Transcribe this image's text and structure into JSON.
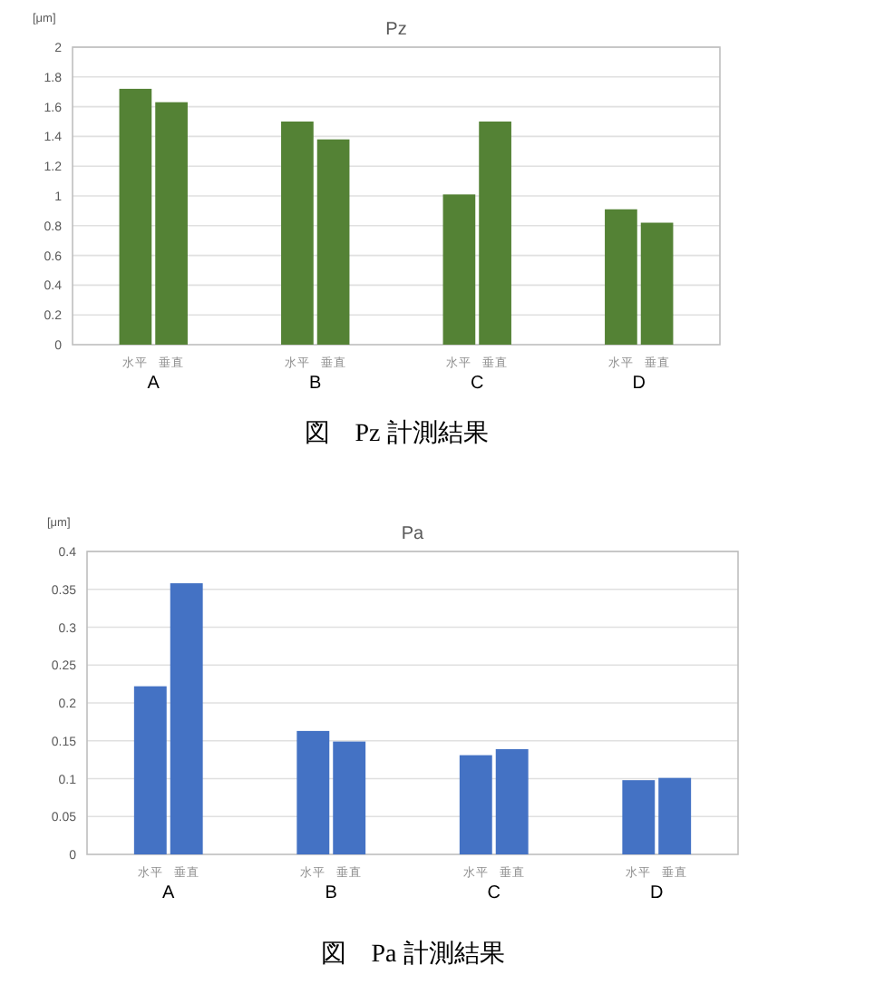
{
  "chart_data": [
    {
      "type": "bar",
      "title": "Pz",
      "ylabel": "[μm]",
      "categories": [
        "A",
        "B",
        "C",
        "D"
      ],
      "series": [
        {
          "name": "水平",
          "color": "#548235",
          "values": [
            1.72,
            1.5,
            1.01,
            0.91
          ]
        },
        {
          "name": "垂直",
          "color": "#548235",
          "values": [
            1.63,
            1.38,
            1.5,
            0.82
          ]
        }
      ],
      "ylim": [
        0,
        2
      ],
      "yticks": [
        0,
        0.2,
        0.4,
        0.6,
        0.8,
        1,
        1.2,
        1.4,
        1.6,
        1.8,
        2
      ],
      "grid": "y",
      "legend": false,
      "annotations": [
        "図　Pz 計測結果"
      ]
    },
    {
      "type": "bar",
      "title": "Pa",
      "ylabel": "[μm]",
      "categories": [
        "A",
        "B",
        "C",
        "D"
      ],
      "series": [
        {
          "name": "水平",
          "color": "#4472c4",
          "values": [
            0.222,
            0.163,
            0.131,
            0.098
          ]
        },
        {
          "name": "垂直",
          "color": "#4472c4",
          "values": [
            0.358,
            0.149,
            0.139,
            0.101
          ]
        }
      ],
      "ylim": [
        0,
        0.4
      ],
      "yticks": [
        0,
        0.05,
        0.1,
        0.15,
        0.2,
        0.25,
        0.3,
        0.35,
        0.4
      ],
      "grid": "y",
      "legend": false,
      "annotations": [
        "図　Pa 計測結果"
      ]
    }
  ]
}
